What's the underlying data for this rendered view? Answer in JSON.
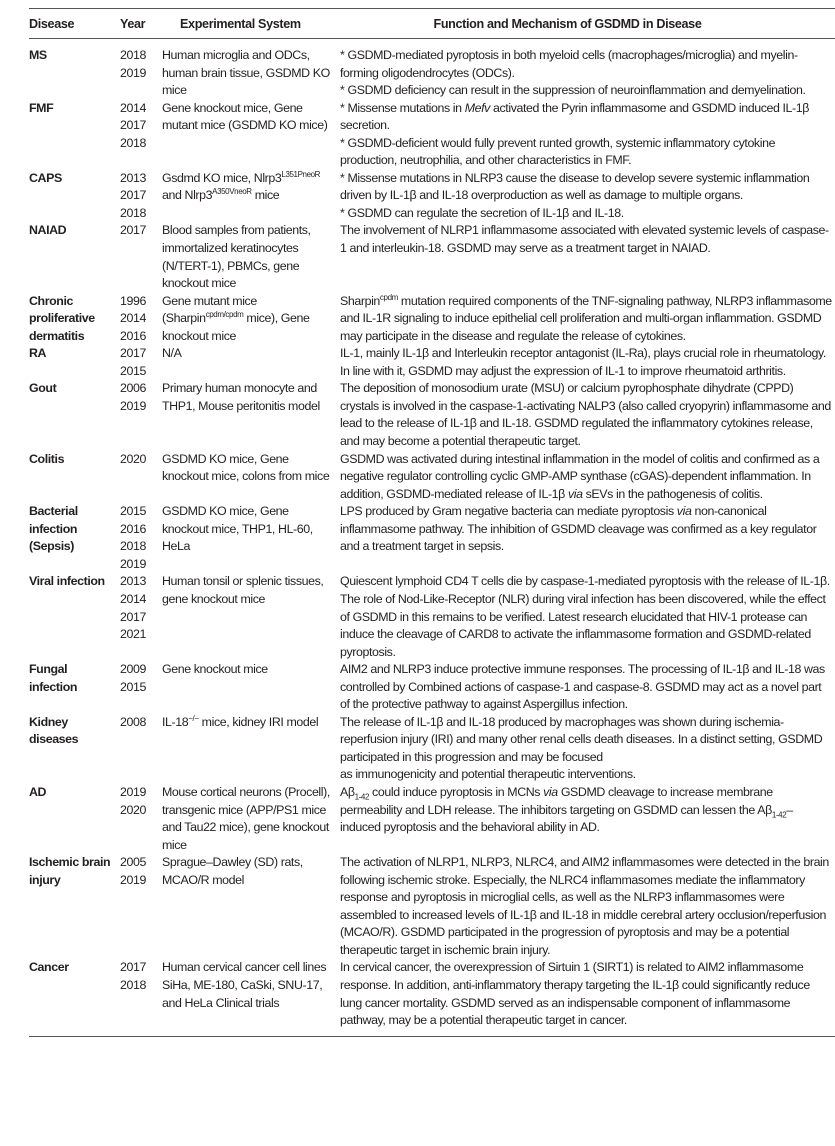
{
  "header": {
    "disease": "Disease",
    "year": "Year",
    "system": "Experimental System",
    "function": "Function and Mechanism of GSDMD in Disease"
  },
  "rows": [
    {
      "disease": "MS",
      "years": [
        "2018",
        "2019"
      ],
      "system": "Human microglia and ODCs, human brain tissue, GSDMD KO mice",
      "function": [
        "* GSDMD-mediated pyroptosis in both myeloid cells (macrophages/microglia) and myelin-forming oligodendrocytes (ODCs).",
        "* GSDMD deficiency can result in the suppression of neuroinflammation and demyelination."
      ]
    },
    {
      "disease": "FMF",
      "years": [
        "2014",
        "2017",
        "2018"
      ],
      "system": "Gene knockout mice, Gene mutant mice (GSDMD KO mice)",
      "function": [
        "* Missense mutations in <i>Mefv</i> activated the Pyrin inflammasome and GSDMD induced IL-1β secretion.",
        "* GSDMD-deficient would fully prevent runted growth, systemic inflammatory cytokine production, neutrophilia, and other characteristics in FMF."
      ]
    },
    {
      "disease": "CAPS",
      "years": [
        "2013",
        "2017",
        "2018"
      ],
      "system": "Gsdmd KO mice, Nlrp3<sup>L351PneoR</sup> and Nlrp3<sup>A350VneoR</sup> mice",
      "function": [
        "* Missense mutations in NLRP3 cause the disease to develop severe systemic inflammation driven by IL-1β and IL-18 overproduction as well as damage to multiple organs.",
        "* GSDMD can regulate the secretion of IL-1β and IL-18."
      ]
    },
    {
      "disease": "NAIAD",
      "years": [
        "2017"
      ],
      "system": "Blood samples from patients, immortalized keratinocytes (N/TERT-1), PBMCs, gene knockout mice",
      "function": [
        "The involvement of NLRP1 inflammasome associated with elevated systemic levels of caspase-1 and interleukin-18. GSDMD may serve as a treatment target in NAIAD."
      ]
    },
    {
      "disease": "Chronic proliferative dermatitis",
      "years": [
        "1996",
        "2014",
        "2016"
      ],
      "system": "Gene mutant mice (Sharpin<sup>cpdm/cpdm</sup> mice), Gene knockout mice",
      "function": [
        "Sharpin<sup>cpdm</sup> mutation required components of the TNF-signaling pathway, NLRP3 inflammasome and IL-1R signaling to induce epithelial cell proliferation and multi-organ inflammation. GSDMD may participate in the disease and regulate the release of cytokines."
      ]
    },
    {
      "disease": "RA",
      "years": [
        "2017",
        "2015"
      ],
      "system": "N/A",
      "function": [
        "IL-1, mainly IL-1β and Interleukin receptor antagonist (IL-Ra), plays crucial role in rheumatology. In line with it, GSDMD may adjust the expression of IL-1 to improve rheumatoid arthritis."
      ]
    },
    {
      "disease": "Gout",
      "years": [
        "2006",
        "2019"
      ],
      "system": "Primary human monocyte and THP1, Mouse peritonitis model",
      "function": [
        "The deposition of monosodium urate (MSU) or calcium pyrophosphate dihydrate (CPPD) crystals is involved in the caspase-1-activating NALP3 (also called cryopyrin) inflammasome and lead to the release of IL-1β and IL-18. GSDMD regulated the inflammatory cytokines release, and may become a potential therapeutic target."
      ]
    },
    {
      "disease": "Colitis",
      "years": [
        "2020"
      ],
      "system": "GSDMD KO mice, Gene knockout mice, colons from mice",
      "function": [
        "GSDMD was activated during intestinal inflammation in the model of colitis and confirmed as a negative regulator controlling cyclic GMP-AMP synthase (cGAS)-dependent inflammation. In addition, GSDMD-mediated release of IL-1β <i>via</i> sEVs in the pathogenesis of colitis."
      ]
    },
    {
      "disease": "Bacterial infection (Sepsis)",
      "years": [
        "2015",
        "2016",
        "2018",
        "2019"
      ],
      "system": "GSDMD KO mice, Gene knockout mice, THP1, HL-60, HeLa",
      "function": [
        "LPS produced by Gram negative bacteria can mediate pyroptosis <i>via</i> non-canonical inflammasome pathway. The inhibition of GSDMD cleavage was confirmed as a key regulator and a treatment target in sepsis."
      ]
    },
    {
      "disease": "Viral infection",
      "years": [
        "2013",
        "2014",
        "2017",
        "2021"
      ],
      "system": "Human tonsil or splenic tissues, gene knockout mice",
      "function": [
        "Quiescent lymphoid CD4 T cells die by caspase-1-mediated pyroptosis with the release of IL-1β. The role of Nod-Like-Receptor (NLR) during viral infection has been discovered, while the effect of GSDMD in this remains to be verified. Latest research elucidated that HIV-1 protease can induce the cleavage of CARD8 to activate the inflammasome formation and GSDMD-related pyroptosis."
      ]
    },
    {
      "disease": "Fungal infection",
      "years": [
        "2009",
        "2015"
      ],
      "system": "Gene knockout mice",
      "function": [
        "AIM2 and NLRP3 induce protective immune responses. The processing of IL-1β and IL-18 was controlled by Combined actions of caspase-1 and caspase-8. GSDMD may act as a novel part of the protective pathway to against Aspergillus infection."
      ]
    },
    {
      "disease": "Kidney diseases",
      "years": [
        "2008"
      ],
      "system": "IL-18<sup>−/−</sup> mice, kidney IRI model",
      "function": [
        "The release of IL-1β and IL-18 produced by macrophages was shown during ischemia-reperfusion injury (IRI) and many other renal cells death diseases. In a distinct setting, GSDMD participated in this progression and may be focused<br>as immunogenicity and potential therapeutic interventions."
      ]
    },
    {
      "disease": "AD",
      "years": [
        "2019",
        "2020"
      ],
      "system": "Mouse cortical neurons (Procell), transgenic mice (APP/PS1 mice and Tau22 mice), gene knockout mice",
      "function": [
        "Aβ<sub>1-42</sub> could induce pyroptosis in MCNs <i>via</i> GSDMD cleavage to increase membrane permeability and LDH release. The inhibitors targeting on GSDMD can lessen the Aβ<sub>1-42</sub>–induced pyroptosis and the behavioral ability in AD."
      ]
    },
    {
      "disease": "Ischemic brain injury",
      "years": [
        "2005",
        "2019"
      ],
      "system": "Sprague–Dawley (SD) rats, MCAO/R model",
      "function": [
        "The activation of NLRP1, NLRP3, NLRC4, and AIM2 inflammasomes were detected in the brain following ischemic stroke. Especially, the NLRC4 inflammasomes mediate the inflammatory response and pyroptosis in microglial cells, as well as the NLRP3 inflammasomes were assembled to increased levels of IL-1β and IL-18 in middle cerebral artery occlusion/reperfusion (MCAO/R). GSDMD participated in the progression of pyroptosis and may be a potential therapeutic target in ischemic brain injury."
      ]
    },
    {
      "disease": "Cancer",
      "years": [
        "2017",
        "2018"
      ],
      "system": "Human cervical cancer cell lines SiHa, ME-180, CaSki, SNU-17, and HeLa Clinical trials",
      "function": [
        "In cervical cancer, the overexpression of Sirtuin 1 (SIRT1) is related to AIM2 inflammasome response. In addition, anti-inflammatory therapy targeting the IL-1β could significantly reduce lung cancer mortality. GSDMD served as an indispensable component of inflammasome pathway, may be a potential therapeutic target in cancer."
      ]
    }
  ]
}
